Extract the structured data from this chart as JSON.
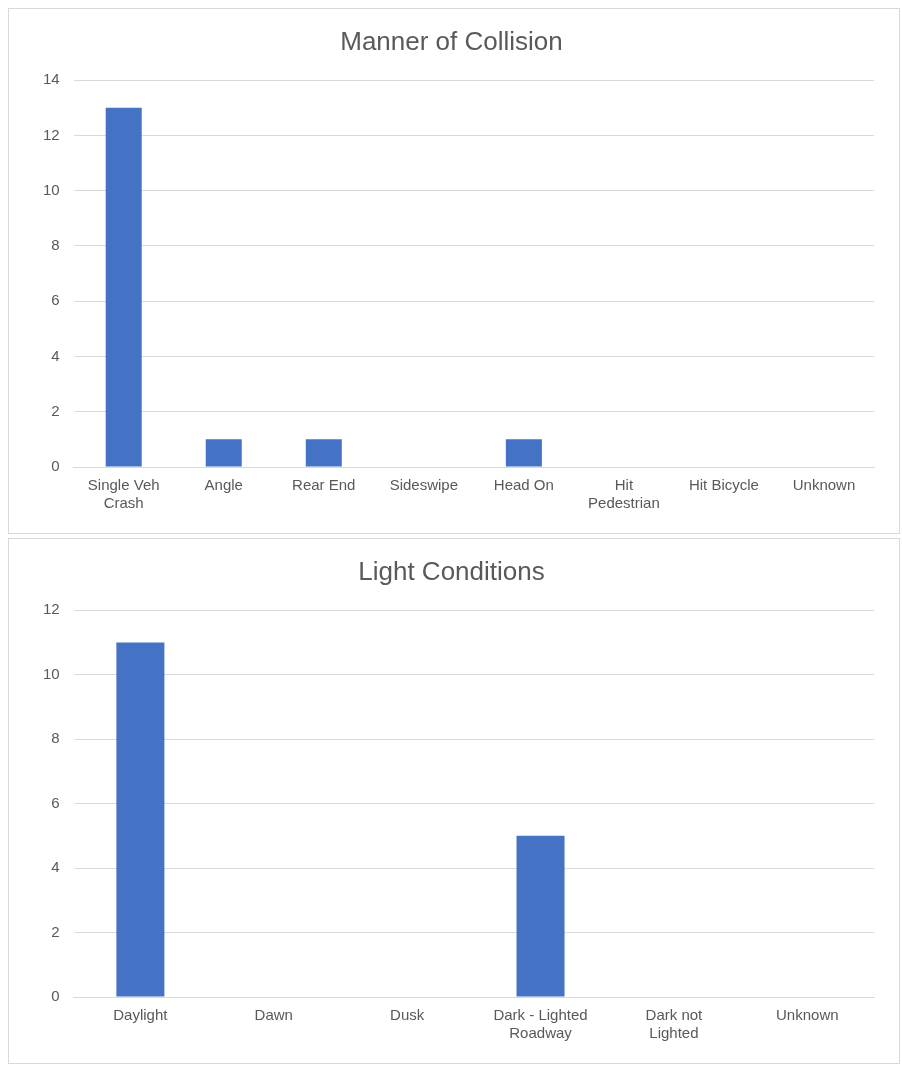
{
  "chart_data": [
    {
      "type": "bar",
      "title": "Manner of Collision",
      "categories": [
        "Single Veh Crash",
        "Angle",
        "Rear End",
        "Sideswipe",
        "Head On",
        "Hit Pedestrian",
        "Hit Bicycle",
        "Unknown"
      ],
      "values": [
        13,
        1,
        1,
        0,
        1,
        0,
        0,
        0
      ],
      "color": "#4472c4",
      "ylim": [
        0,
        14
      ],
      "yticks": [
        0,
        2,
        4,
        6,
        8,
        10,
        12,
        14
      ],
      "grid": "y",
      "legend": false
    },
    {
      "type": "bar",
      "title": "Light Conditions",
      "categories": [
        "Daylight",
        "Dawn",
        "Dusk",
        "Dark - Lighted Roadway",
        "Dark not Lighted",
        "Unknown"
      ],
      "values": [
        11,
        0,
        0,
        5,
        0,
        0
      ],
      "color": "#4472c4",
      "ylim": [
        0,
        12
      ],
      "yticks": [
        0,
        2,
        4,
        6,
        8,
        10,
        12
      ],
      "grid": "y",
      "legend": false
    }
  ]
}
